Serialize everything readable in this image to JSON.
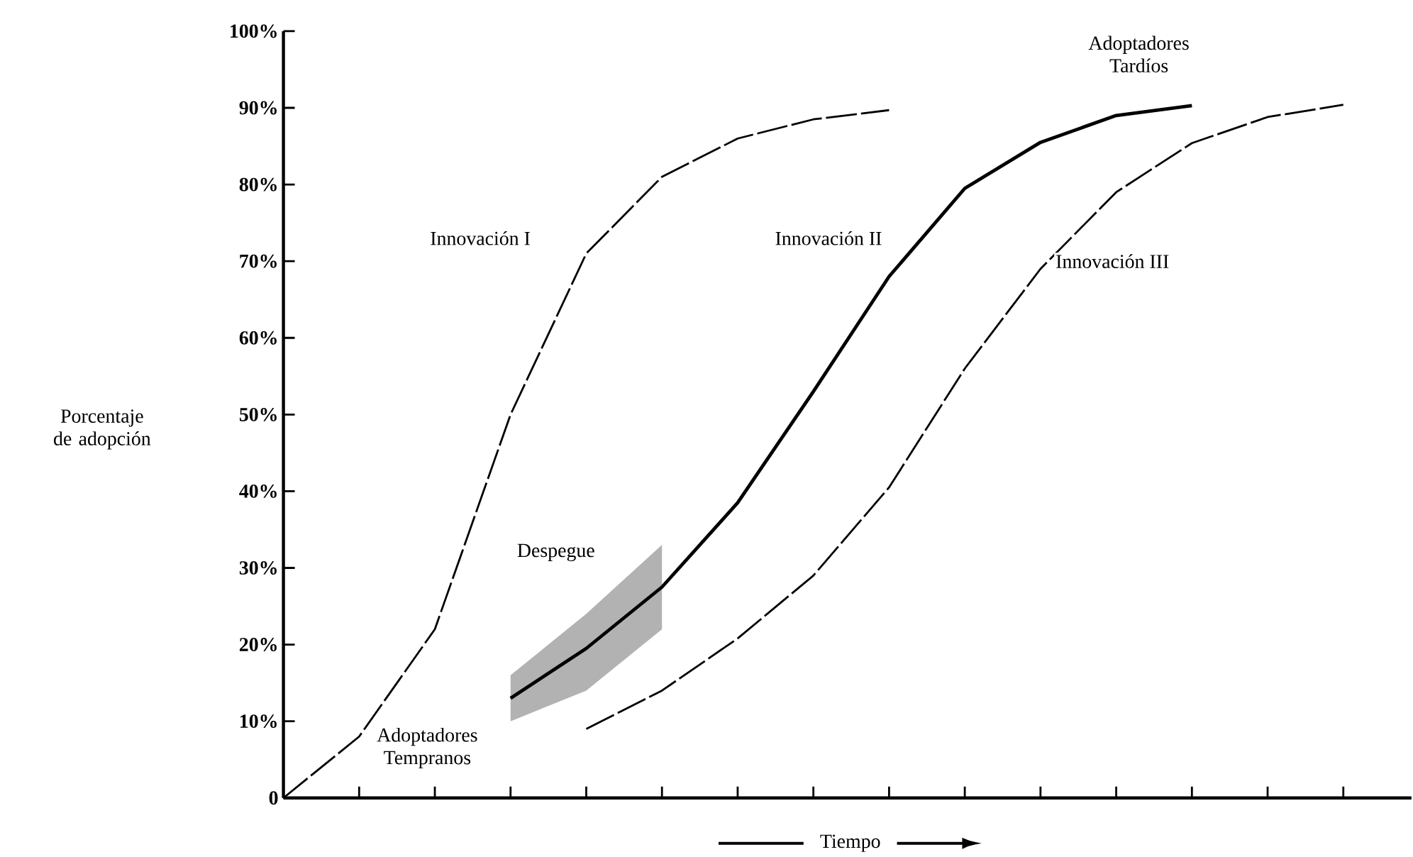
{
  "chart_data": {
    "type": "line",
    "xlabel": "Tiempo",
    "ylabel": "Porcentaje de adopción",
    "categories": [
      null,
      null,
      null,
      null,
      null,
      null,
      null,
      null,
      null,
      null,
      null,
      null,
      null,
      null,
      null
    ],
    "ylim": [
      0,
      100
    ],
    "yticks": [
      {
        "value": 0,
        "label": "0"
      },
      {
        "value": 10,
        "label": "10%"
      },
      {
        "value": 20,
        "label": "20%"
      },
      {
        "value": 30,
        "label": "30%"
      },
      {
        "value": 40,
        "label": "40%"
      },
      {
        "value": 50,
        "label": "50%"
      },
      {
        "value": 60,
        "label": "60%"
      },
      {
        "value": 70,
        "label": "70%"
      },
      {
        "value": 80,
        "label": "80%"
      },
      {
        "value": 90,
        "label": "90%"
      },
      {
        "value": 100,
        "label": "100%"
      }
    ],
    "tick_labels": "y",
    "grid": false,
    "marker": "none",
    "series": [
      {
        "name": "Innovación I",
        "color": "#000000",
        "line_style": "dashed",
        "values": [
          0,
          8,
          22,
          50,
          71,
          81,
          86,
          88.5,
          89.7,
          null,
          null,
          null,
          null,
          null,
          null
        ]
      },
      {
        "name": "Innovación II",
        "color": "#000000",
        "line_style": "solid",
        "values": [
          null,
          null,
          null,
          13,
          19.5,
          27.5,
          38.5,
          53,
          68,
          79.5,
          85.5,
          89,
          90.3,
          null,
          null
        ],
        "lower": [
          null,
          null,
          null,
          10,
          14,
          22,
          null,
          null,
          null,
          null,
          null,
          null,
          null,
          null,
          null
        ],
        "upper": [
          null,
          null,
          null,
          16,
          24,
          33,
          null,
          null,
          null,
          null,
          null,
          null,
          null,
          null,
          null
        ]
      },
      {
        "name": "Innovación III",
        "color": "#000000",
        "line_style": "dashed",
        "values": [
          null,
          null,
          null,
          null,
          9,
          14,
          20.8,
          29,
          40.5,
          56,
          69,
          79,
          85.4,
          88.8,
          90.4
        ]
      }
    ],
    "annotations": [
      "Adoptadores Tempranos",
      "Despegue",
      "Adoptadores Tardíos"
    ]
  }
}
